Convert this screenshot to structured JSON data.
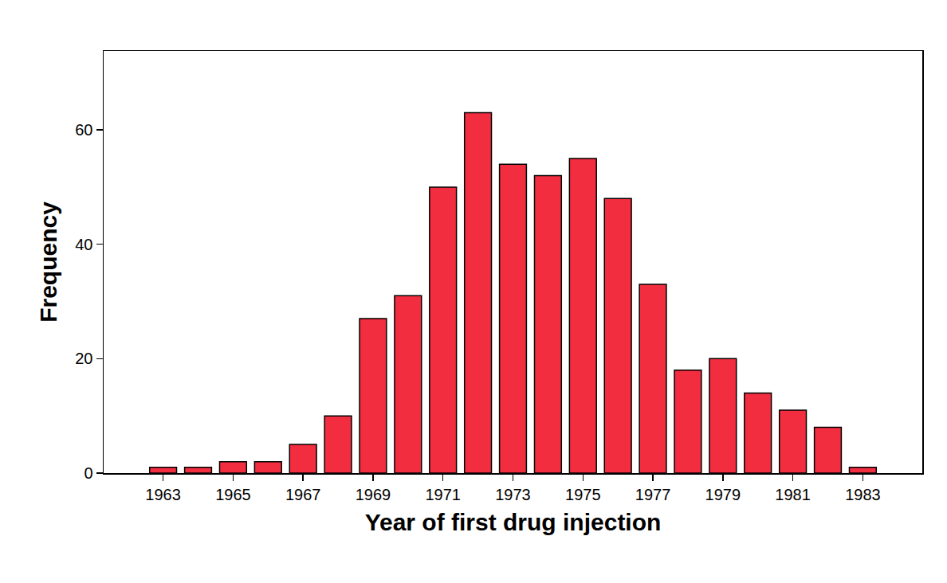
{
  "chart_data": {
    "type": "bar",
    "xlabel": "Year of first drug injection",
    "ylabel": "Frequency",
    "x": [
      1963,
      1964,
      1965,
      1966,
      1967,
      1968,
      1969,
      1970,
      1971,
      1972,
      1973,
      1974,
      1975,
      1976,
      1977,
      1978,
      1979,
      1980,
      1981,
      1982,
      1983
    ],
    "values": [
      1,
      1,
      2,
      2,
      5,
      10,
      27,
      31,
      50,
      63,
      54,
      52,
      55,
      48,
      33,
      18,
      20,
      14,
      11,
      8,
      1
    ],
    "color": "#f22d3f",
    "xlim": [
      1961.3,
      1984.7
    ],
    "xticks": [
      1963,
      1965,
      1967,
      1969,
      1971,
      1973,
      1975,
      1977,
      1979,
      1981,
      1983
    ],
    "ylim": [
      0,
      73.8
    ],
    "yticks": [
      0,
      20,
      40,
      60
    ],
    "grid": false
  }
}
